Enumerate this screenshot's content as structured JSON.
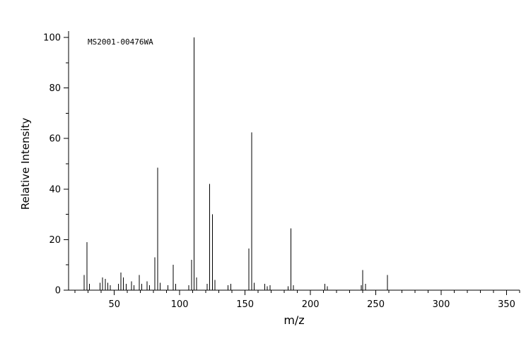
{
  "chart_data": {
    "type": "bar",
    "subtype": "mass-spectrum-stick-plot",
    "title": "",
    "xlabel": "m/z",
    "ylabel": "Relative Intensity",
    "annotation": "MS2001-00476WA",
    "xlim": [
      15,
      360
    ],
    "ylim": [
      0,
      100
    ],
    "x_major_ticks": [
      50,
      100,
      150,
      200,
      250,
      300,
      350
    ],
    "x_minor_step": 10,
    "y_major_ticks": [
      0,
      20,
      40,
      60,
      80,
      100
    ],
    "y_minor_step": 10,
    "grid": false,
    "legend": false,
    "peaks": [
      [
        27,
        6
      ],
      [
        29,
        19
      ],
      [
        31,
        2.5
      ],
      [
        39,
        3
      ],
      [
        41,
        5
      ],
      [
        43,
        4.5
      ],
      [
        45,
        3
      ],
      [
        47,
        2
      ],
      [
        53,
        2.5
      ],
      [
        55,
        7
      ],
      [
        57,
        5
      ],
      [
        59,
        2.5
      ],
      [
        63,
        3.5
      ],
      [
        65,
        2
      ],
      [
        69,
        6
      ],
      [
        71,
        2.5
      ],
      [
        75,
        3.5
      ],
      [
        77,
        2
      ],
      [
        81,
        13
      ],
      [
        83,
        48.5
      ],
      [
        85,
        3
      ],
      [
        91,
        2
      ],
      [
        95,
        10
      ],
      [
        97,
        2.5
      ],
      [
        107,
        2
      ],
      [
        109,
        12
      ],
      [
        111,
        100
      ],
      [
        113,
        5
      ],
      [
        121,
        2.5
      ],
      [
        123,
        42
      ],
      [
        125,
        30
      ],
      [
        127,
        4
      ],
      [
        137,
        2
      ],
      [
        139,
        2.5
      ],
      [
        153,
        16.5
      ],
      [
        155,
        62.5
      ],
      [
        157,
        3
      ],
      [
        165,
        2.5
      ],
      [
        167,
        1.5
      ],
      [
        169,
        2
      ],
      [
        183,
        1.5
      ],
      [
        185,
        24.5
      ],
      [
        187,
        2
      ],
      [
        211,
        2.5
      ],
      [
        213,
        1.5
      ],
      [
        239,
        2
      ],
      [
        240,
        8
      ],
      [
        242,
        2.5
      ],
      [
        259,
        6
      ]
    ]
  },
  "colors": {
    "axis": "#000000",
    "peak": "#000000",
    "text": "#000000",
    "background": "#ffffff"
  }
}
